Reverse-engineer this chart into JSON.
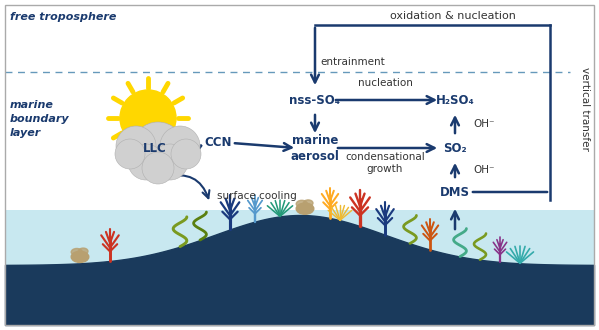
{
  "bg_color": "#ffffff",
  "ocean_light_color": "#c8e8f0",
  "ocean_deep_color": "#1a3a5c",
  "arrow_color": "#1a3a6e",
  "dashed_line_color": "#6699bb",
  "border_color": "#aaaaaa",
  "free_troposphere_label": "free troposphere",
  "marine_boundary_label": "marine\nboundary\nlayer",
  "labels": {
    "nss_SO4": "nss-SO₄",
    "H2SO4": "H₂SO₄",
    "marine_aerosol": "marine\naerosol",
    "SO2": "SO₂",
    "DMS": "DMS",
    "CCN": "CCN",
    "LLC": "LLC",
    "OH1": "OH⁻",
    "OH2": "OH⁻"
  },
  "arrow_labels": {
    "oxidation_nucleation": "oxidation & nucleation",
    "nucleation": "nucleation",
    "condensational_growth": "condensational\ngrowth",
    "entrainment": "entrainment",
    "surface_cooling": "surface cooling",
    "vertical_transfer": "vertical transfer"
  },
  "node_color": "#1a3a6e",
  "text_color": "#333333",
  "sun_color": "#FFD700",
  "cloud_color": "#d0d0d0",
  "cloud_edge_color": "#b0b0b0"
}
